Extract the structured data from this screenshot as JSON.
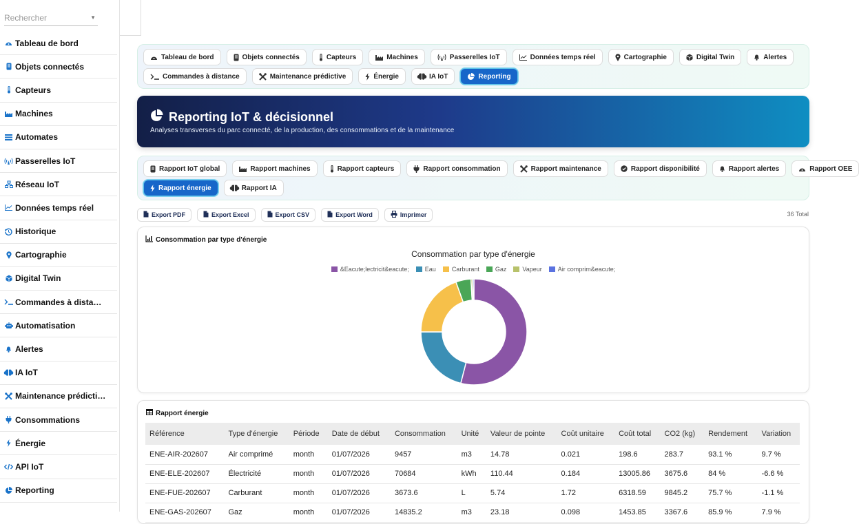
{
  "sidebar": {
    "search_placeholder": "Rechercher",
    "items": [
      {
        "label": "Tableau de bord",
        "icon": "gauge-icon"
      },
      {
        "label": "Objets connectés",
        "icon": "device-icon"
      },
      {
        "label": "Capteurs",
        "icon": "thermometer-icon"
      },
      {
        "label": "Machines",
        "icon": "industry-icon"
      },
      {
        "label": "Automates",
        "icon": "list-icon"
      },
      {
        "label": "Passerelles IoT",
        "icon": "antenna-icon"
      },
      {
        "label": "Réseau IoT",
        "icon": "network-icon"
      },
      {
        "label": "Données temps réel",
        "icon": "line-chart-icon"
      },
      {
        "label": "Historique",
        "icon": "history-icon"
      },
      {
        "label": "Cartographie",
        "icon": "map-pin-icon"
      },
      {
        "label": "Digital Twin",
        "icon": "cube-icon"
      },
      {
        "label": "Commandes à dista…",
        "icon": "terminal-icon"
      },
      {
        "label": "Automatisation",
        "icon": "robot-icon"
      },
      {
        "label": "Alertes",
        "icon": "bell-icon"
      },
      {
        "label": "IA IoT",
        "icon": "brain-icon"
      },
      {
        "label": "Maintenance prédicti…",
        "icon": "tools-icon"
      },
      {
        "label": "Consommations",
        "icon": "plug-icon"
      },
      {
        "label": "Énergie",
        "icon": "bolt-icon"
      },
      {
        "label": "API IoT",
        "icon": "code-icon"
      },
      {
        "label": "Reporting",
        "icon": "pie-icon"
      }
    ]
  },
  "module_tabs": {
    "row1": [
      {
        "label": "Tableau de bord",
        "icon": "gauge-icon"
      },
      {
        "label": "Objets connectés",
        "icon": "device-icon"
      },
      {
        "label": "Capteurs",
        "icon": "thermometer-icon"
      },
      {
        "label": "Machines",
        "icon": "industry-icon"
      },
      {
        "label": "Passerelles IoT",
        "icon": "antenna-icon"
      },
      {
        "label": "Données temps réel",
        "icon": "line-chart-icon"
      },
      {
        "label": "Cartographie",
        "icon": "map-pin-icon"
      },
      {
        "label": "Digital Twin",
        "icon": "cube-icon"
      },
      {
        "label": "Alertes",
        "icon": "bell-icon"
      }
    ],
    "row2": [
      {
        "label": "Commandes à distance",
        "icon": "terminal-icon"
      },
      {
        "label": "Maintenance prédictive",
        "icon": "tools-icon"
      },
      {
        "label": "Énergie",
        "icon": "bolt-icon"
      },
      {
        "label": "IA IoT",
        "icon": "brain-icon"
      },
      {
        "label": "Reporting",
        "icon": "pie-icon",
        "active": true
      }
    ]
  },
  "banner": {
    "title": "Reporting IoT & décisionnel",
    "subtitle": "Analyses transverses du parc connecté, de la production, des consommations et de la maintenance"
  },
  "report_tabs": {
    "row1": [
      {
        "label": "Rapport IoT global",
        "icon": "device-icon"
      },
      {
        "label": "Rapport machines",
        "icon": "industry-icon"
      },
      {
        "label": "Rapport capteurs",
        "icon": "thermometer-icon"
      },
      {
        "label": "Rapport consommation",
        "icon": "plug-icon"
      },
      {
        "label": "Rapport maintenance",
        "icon": "tools-icon"
      },
      {
        "label": "Rapport disponibilité",
        "icon": "check-circle-icon"
      },
      {
        "label": "Rapport alertes",
        "icon": "bell-icon"
      },
      {
        "label": "Rapport OEE",
        "icon": "gauge-icon"
      }
    ],
    "row2": [
      {
        "label": "Rapport énergie",
        "icon": "bolt-icon",
        "active": true
      },
      {
        "label": "Rapport IA",
        "icon": "brain-icon"
      }
    ]
  },
  "exports": [
    {
      "label": "Export PDF",
      "icon": "file-icon"
    },
    {
      "label": "Export Excel",
      "icon": "file-icon"
    },
    {
      "label": "Export CSV",
      "icon": "file-icon"
    },
    {
      "label": "Export Word",
      "icon": "file-icon"
    },
    {
      "label": "Imprimer",
      "icon": "printer-icon"
    }
  ],
  "total_label": "36 Total",
  "chart_card": {
    "title": "Consommation par type d'énergie"
  },
  "chart_data": {
    "type": "pie",
    "title": "Consommation par type d'énergie",
    "categories": [
      "&Eacute;lectricit&eacute;",
      "Eau",
      "Carburant",
      "Gaz",
      "Vapeur",
      "Air comprim&eacute;"
    ],
    "values": [
      54.0,
      21.0,
      19.5,
      4.6,
      0.5,
      0.4
    ],
    "colors": [
      "#8a55a6",
      "#3b8fb5",
      "#f6c04a",
      "#4aa657",
      "#b8c26b",
      "#5b72e0"
    ],
    "legend": "top"
  },
  "table_card": {
    "title": "Rapport énergie",
    "columns": [
      "Référence",
      "Type d'énergie",
      "Période",
      "Date de début",
      "Consommation",
      "Unité",
      "Valeur de pointe",
      "Coût unitaire",
      "Coût total",
      "CO2 (kg)",
      "Rendement",
      "Variation"
    ],
    "rows": [
      [
        "ENE-AIR-202607",
        "Air comprimé",
        "month",
        "01/07/2026",
        "9457",
        "m3",
        "14.78",
        "0.021",
        "198.6",
        "283.7",
        "93.1 %",
        "9.7 %"
      ],
      [
        "ENE-ELE-202607",
        "Électricité",
        "month",
        "01/07/2026",
        "70684",
        "kWh",
        "110.44",
        "0.184",
        "13005.86",
        "3675.6",
        "84 %",
        "-6.6 %"
      ],
      [
        "ENE-FUE-202607",
        "Carburant",
        "month",
        "01/07/2026",
        "3673.6",
        "L",
        "5.74",
        "1.72",
        "6318.59",
        "9845.2",
        "75.7 %",
        "-1.1 %"
      ],
      [
        "ENE-GAS-202607",
        "Gaz",
        "month",
        "01/07/2026",
        "14835.2",
        "m3",
        "23.18",
        "0.098",
        "1453.85",
        "3367.6",
        "85.9 %",
        "7.9 %"
      ]
    ]
  }
}
